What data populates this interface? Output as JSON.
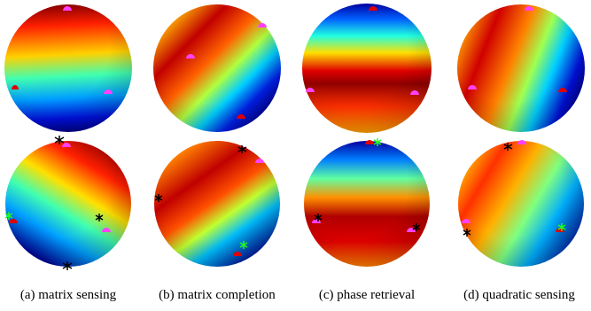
{
  "subfigures": [
    {
      "caption": "(a) matrix sensing"
    },
    {
      "caption": "(b) matrix completion"
    },
    {
      "caption": "(c) phase retrieval"
    },
    {
      "caption": "(d) quadratic sensing"
    }
  ]
}
